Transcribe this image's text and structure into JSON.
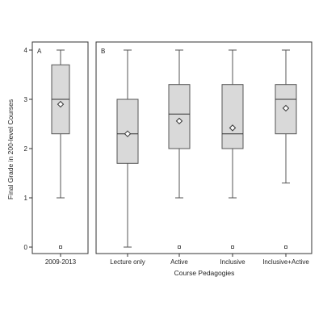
{
  "chart_data": {
    "type": "box",
    "ylabel": "Final Grade in 200-level Courses",
    "ylim": [
      0,
      4
    ],
    "yticks": [
      "0",
      "1",
      "2",
      "3",
      "4"
    ],
    "panels": [
      {
        "label": "A",
        "xlabel": "",
        "categories": [
          "2009-2013"
        ],
        "boxes": [
          {
            "whisker_low": 1.0,
            "q1": 2.3,
            "median": 3.0,
            "q3": 3.7,
            "whisker_high": 4.0,
            "mean": 2.9,
            "outliers": [
              0
            ]
          }
        ]
      },
      {
        "label": "B",
        "xlabel": "Course Pedagogies",
        "categories": [
          "Lecture only",
          "Active",
          "Inclusive",
          "Inclusive+Active"
        ],
        "boxes": [
          {
            "whisker_low": 0.0,
            "q1": 1.7,
            "median": 2.3,
            "q3": 3.0,
            "whisker_high": 4.0,
            "mean": 2.3,
            "outliers": []
          },
          {
            "whisker_low": 1.0,
            "q1": 2.0,
            "median": 2.7,
            "q3": 3.3,
            "whisker_high": 4.0,
            "mean": 2.56,
            "outliers": [
              0
            ]
          },
          {
            "whisker_low": 1.0,
            "q1": 2.0,
            "median": 2.3,
            "q3": 3.3,
            "whisker_high": 4.0,
            "mean": 2.42,
            "outliers": [
              0
            ]
          },
          {
            "whisker_low": 1.3,
            "q1": 2.3,
            "median": 3.0,
            "q3": 3.3,
            "whisker_high": 4.0,
            "mean": 2.82,
            "outliers": [
              0
            ]
          }
        ]
      }
    ],
    "style": {
      "box_fill": "#d9d9d9",
      "stroke": "#555555",
      "frame": "#333333"
    }
  }
}
